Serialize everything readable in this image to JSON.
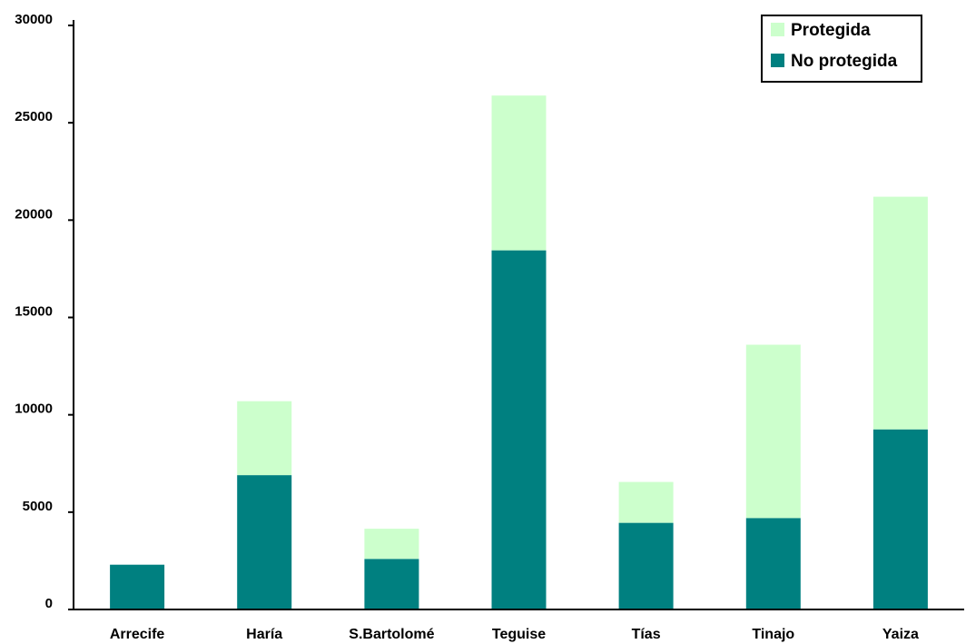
{
  "chart_data": {
    "type": "bar",
    "stacked": true,
    "title": "",
    "xlabel": "",
    "ylabel": "",
    "ylim": [
      0,
      30000
    ],
    "yticks": [
      0,
      5000,
      10000,
      15000,
      20000,
      25000,
      30000
    ],
    "grid": false,
    "legend_position": "top-right",
    "categories": [
      "Arrecife",
      "Haría",
      "S.Bartolomé",
      "Teguise",
      "Tías",
      "Tinajo",
      "Yaiza"
    ],
    "series": [
      {
        "name": "No protegida",
        "color": "#008080",
        "values": [
          2300,
          6900,
          2600,
          18450,
          4450,
          4700,
          9250
        ]
      },
      {
        "name": "Protegida",
        "color": "#ccffcc",
        "values": [
          0,
          3800,
          1550,
          7950,
          2100,
          8900,
          11950
        ]
      }
    ],
    "legend": [
      "Protegida",
      "No protegida"
    ]
  }
}
